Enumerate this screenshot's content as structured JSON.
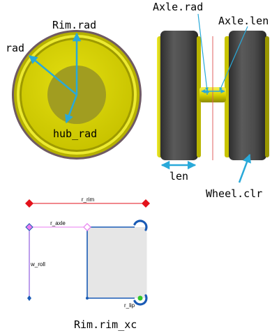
{
  "colors": {
    "annotation": "#29a9d9",
    "wheel_yellow": "#d9d400",
    "wheel_dark_yellow": "#8c8a00",
    "tire_gray": "#4d4d4d",
    "hub_olive": "#a19d20",
    "rim_outer_ring": "#6f5a63",
    "centerline_red": "#e06060",
    "sketch_blue": "#1a5bb5",
    "sketch_red": "#e3121b",
    "sketch_purple": "#7a3bd8",
    "sketch_pink": "#e87cf0",
    "sketch_fill": "#e6e6e6",
    "lip_green": "#35c829"
  },
  "front_view": {
    "labels": {
      "rim_rad": "Rim.rad",
      "rad": "rad",
      "hub_rad": "hub_rad"
    }
  },
  "side_view": {
    "labels": {
      "axle_rad": "Axle.rad",
      "axle_len": "Axle.len",
      "len": "len",
      "wheel_clr": "Wheel.clr"
    }
  },
  "sketch": {
    "title": "Rim.rim_xc",
    "dimensions": {
      "r_rim": "r_rim",
      "r_axle": "r_axle",
      "w_roll": "w_roll",
      "r_lip": "r_lip"
    }
  }
}
